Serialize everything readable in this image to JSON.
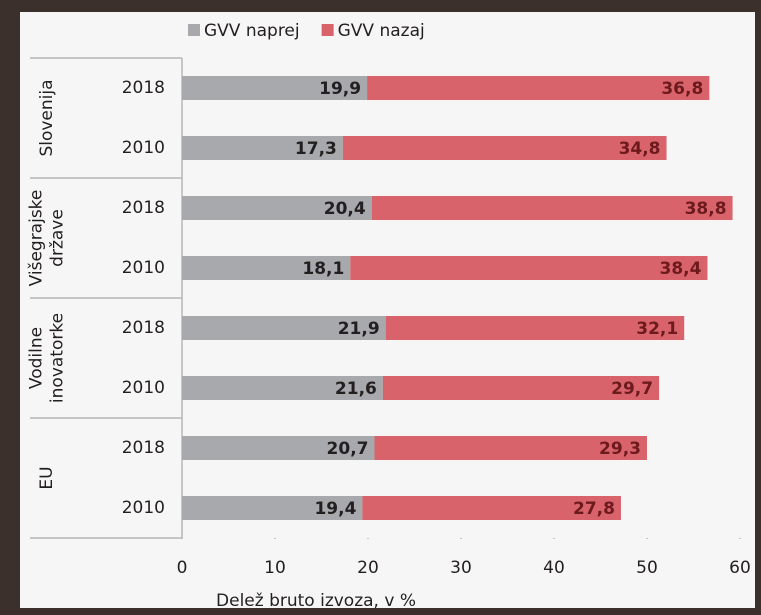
{
  "chart_data": {
    "type": "bar",
    "orientation": "horizontal",
    "stacked": true,
    "categories": [
      "2018",
      "2010",
      "2018",
      "2010",
      "2018",
      "2010",
      "2018",
      "2010"
    ],
    "groups": [
      {
        "lines": [
          "Slovenija"
        ]
      },
      {
        "lines": [
          "Višegrajske",
          "države"
        ]
      },
      {
        "lines": [
          "Vodilne",
          "inovatorke"
        ]
      },
      {
        "lines": [
          "EU"
        ]
      }
    ],
    "series": [
      {
        "name": "GVV naprej",
        "color": "#a7a9ac",
        "label_color": "#231f20",
        "values": [
          19.9,
          17.3,
          20.4,
          18.1,
          21.9,
          21.6,
          20.7,
          19.4
        ],
        "value_labels": [
          "19,9",
          "17,3",
          "20,4",
          "18,1",
          "21,9",
          "21,6",
          "20,7",
          "19,4"
        ]
      },
      {
        "name": "GVV nazaj",
        "color": "#d9636a",
        "label_color": "#6d1a1f",
        "values": [
          36.8,
          34.8,
          38.8,
          38.4,
          32.1,
          29.7,
          29.3,
          27.8
        ],
        "value_labels": [
          "36,8",
          "34,8",
          "38,8",
          "38,4",
          "32,1",
          "29,7",
          "29,3",
          "27,8"
        ]
      }
    ],
    "xlim": [
      0,
      60
    ],
    "xticks": [
      0,
      10,
      20,
      30,
      40,
      50,
      60
    ],
    "xlabel": "Delež bruto izvoza, v %",
    "grid": false
  }
}
